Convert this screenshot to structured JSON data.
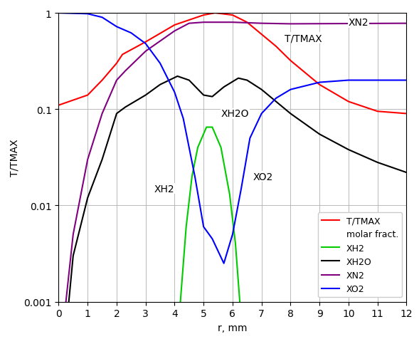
{
  "chart_data": {
    "type": "line",
    "xlabel": "r, mm",
    "ylabel": "T/TMAX",
    "log": "y",
    "grid": true,
    "legend": "lower right",
    "legend_title": "molar fract.",
    "xlim": [
      0,
      12
    ],
    "ylim": [
      0.001,
      1
    ],
    "xticks": [
      0,
      1,
      2,
      3,
      4,
      5,
      6,
      7,
      8,
      9,
      10,
      11,
      12
    ],
    "yticks": [
      0.001,
      0.01,
      0.1,
      1
    ],
    "series": [
      {
        "name": "T/TMAX",
        "color": "#ff0000",
        "x": [
          0,
          1,
          1.5,
          2,
          2.2,
          3,
          4,
          5,
          5.4,
          6,
          6.5,
          7,
          7.5,
          8,
          9,
          10,
          11,
          12
        ],
        "values": [
          0.11,
          0.14,
          0.2,
          0.3,
          0.37,
          0.5,
          0.75,
          0.95,
          1.0,
          0.95,
          0.8,
          0.6,
          0.45,
          0.32,
          0.18,
          0.12,
          0.095,
          0.09
        ]
      },
      {
        "name": "XH2",
        "color": "#00cc00",
        "x": [
          4.2,
          4.4,
          4.6,
          4.8,
          5.1,
          5.3,
          5.6,
          5.9,
          6.1,
          6.25
        ],
        "values": [
          0.001,
          0.006,
          0.02,
          0.04,
          0.065,
          0.065,
          0.04,
          0.013,
          0.004,
          0.001
        ]
      },
      {
        "name": "XH2O",
        "color": "#000000",
        "x": [
          0.35,
          0.5,
          1,
          1.5,
          2,
          2.3,
          3,
          3.5,
          4.1,
          4.5,
          5,
          5.3,
          5.7,
          6.2,
          6.5,
          7,
          8,
          9,
          10,
          11,
          12
        ],
        "values": [
          0.001,
          0.003,
          0.012,
          0.03,
          0.09,
          0.105,
          0.14,
          0.18,
          0.22,
          0.2,
          0.14,
          0.135,
          0.17,
          0.21,
          0.2,
          0.16,
          0.09,
          0.055,
          0.038,
          0.028,
          0.022
        ]
      },
      {
        "name": "XN2",
        "color": "#800080",
        "x": [
          0.25,
          0.5,
          1,
          1.5,
          2,
          2.3,
          3,
          4,
          4.5,
          5,
          6,
          7,
          8,
          12
        ],
        "values": [
          0.001,
          0.005,
          0.03,
          0.09,
          0.2,
          0.25,
          0.4,
          0.65,
          0.78,
          0.8,
          0.8,
          0.78,
          0.77,
          0.78
        ]
      },
      {
        "name": "XO2",
        "color": "#0000ff",
        "x": [
          0,
          1,
          1.5,
          2,
          2.5,
          3,
          3.5,
          4,
          4.3,
          4.7,
          5,
          5.3,
          5.7,
          6,
          6.3,
          6.6,
          7,
          7.5,
          8,
          9,
          10,
          12
        ],
        "values": [
          1.0,
          0.98,
          0.9,
          0.72,
          0.62,
          0.48,
          0.3,
          0.15,
          0.08,
          0.02,
          0.006,
          0.0045,
          0.0025,
          0.005,
          0.015,
          0.05,
          0.09,
          0.13,
          0.16,
          0.19,
          0.2,
          0.2
        ]
      }
    ],
    "annotations": [
      {
        "text": "XN2",
        "x": 10,
        "y": 0.8
      },
      {
        "text": "T/TMAX",
        "x": 7.8,
        "y": 0.55
      },
      {
        "text": "XH2O",
        "x": 5.6,
        "y": 0.09
      },
      {
        "text": "XO2",
        "x": 6.7,
        "y": 0.02
      },
      {
        "text": "XH2",
        "x": 3.3,
        "y": 0.015
      }
    ]
  }
}
